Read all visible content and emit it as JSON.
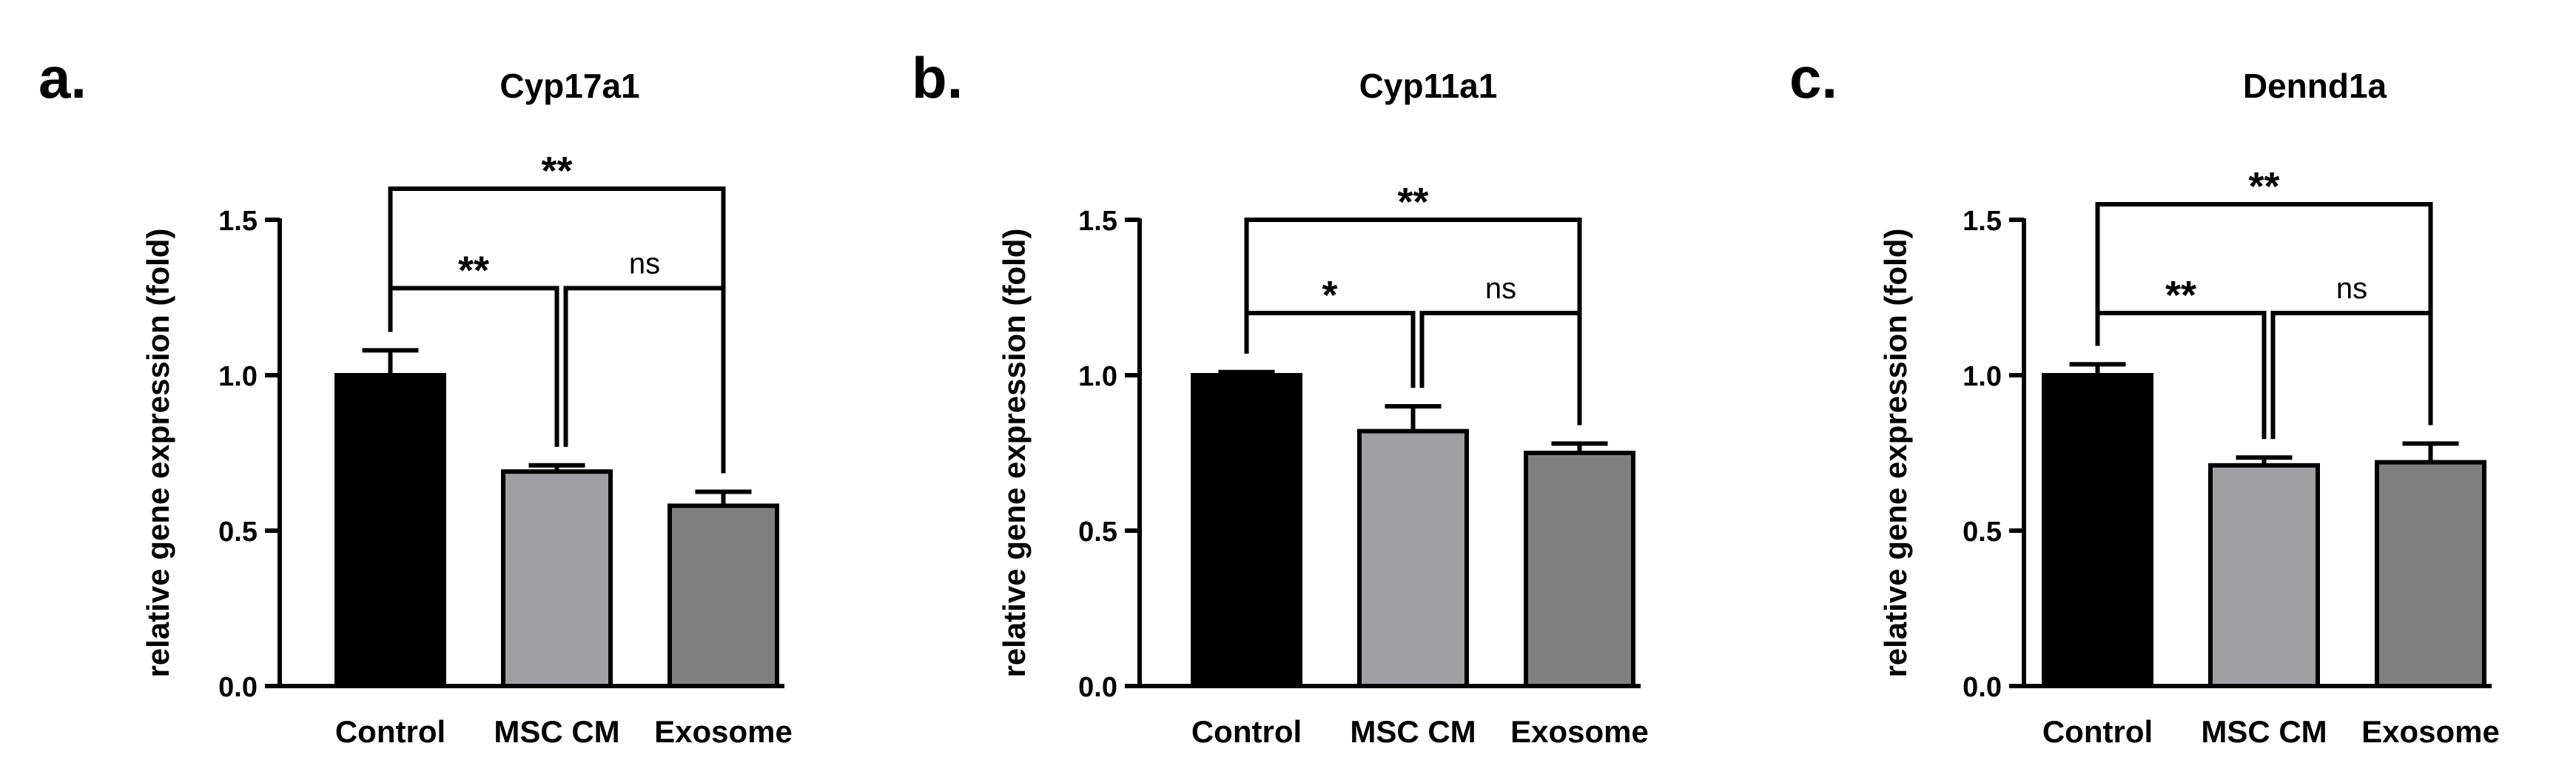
{
  "chart_data": [
    {
      "type": "bar",
      "panel_label": "a.",
      "title": "Cyp17a1",
      "ylabel": "relative gene expression (fold)",
      "ylim": [
        0,
        1.5
      ],
      "yticks": [
        "0.0",
        "0.5",
        "1.0",
        "1.5"
      ],
      "categories": [
        "Control",
        "MSC CM",
        "Exosome"
      ],
      "values": [
        1.0,
        0.69,
        0.58
      ],
      "errors": [
        0.08,
        0.02,
        0.045
      ],
      "bar_colors": [
        "#000000",
        "#a0a0a4",
        "#808080"
      ],
      "brackets": [
        {
          "from": 0,
          "to": 1,
          "label": "**",
          "level": 1.28
        },
        {
          "from": 1,
          "to": 2,
          "label": "ns",
          "level": 1.28
        },
        {
          "from": 0,
          "to": 2,
          "label": "**",
          "level": 1.6
        }
      ]
    },
    {
      "type": "bar",
      "panel_label": "b.",
      "title": "Cyp11a1",
      "ylabel": "relative gene expression (fold)",
      "ylim": [
        0,
        1.5
      ],
      "yticks": [
        "0.0",
        "0.5",
        "1.0",
        "1.5"
      ],
      "categories": [
        "Control",
        "MSC CM",
        "Exosome"
      ],
      "values": [
        1.0,
        0.82,
        0.75
      ],
      "errors": [
        0.01,
        0.08,
        0.03
      ],
      "bar_colors": [
        "#000000",
        "#a0a0a4",
        "#808080"
      ],
      "brackets": [
        {
          "from": 0,
          "to": 1,
          "label": "*",
          "level": 1.2
        },
        {
          "from": 1,
          "to": 2,
          "label": "ns",
          "level": 1.2
        },
        {
          "from": 0,
          "to": 2,
          "label": "**",
          "level": 1.5
        }
      ]
    },
    {
      "type": "bar",
      "panel_label": "c.",
      "title": "Dennd1a",
      "ylabel": "relative gene expression (fold)",
      "ylim": [
        0,
        1.5
      ],
      "yticks": [
        "0.0",
        "0.5",
        "1.0",
        "1.5"
      ],
      "categories": [
        "Control",
        "MSC CM",
        "Exosome"
      ],
      "values": [
        1.0,
        0.71,
        0.72
      ],
      "errors": [
        0.035,
        0.025,
        0.06
      ],
      "bar_colors": [
        "#000000",
        "#a0a0a4",
        "#808080"
      ],
      "brackets": [
        {
          "from": 0,
          "to": 1,
          "label": "**",
          "level": 1.2
        },
        {
          "from": 1,
          "to": 2,
          "label": "ns",
          "level": 1.2
        },
        {
          "from": 0,
          "to": 2,
          "label": "**",
          "level": 1.55
        }
      ]
    }
  ]
}
